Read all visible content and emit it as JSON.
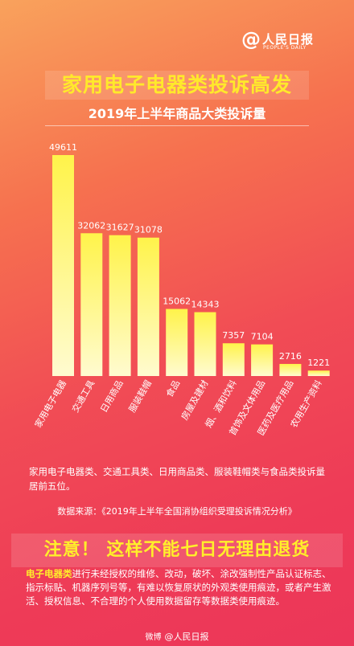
{
  "logo": {
    "at": "@",
    "name": "人民日报",
    "sub": "PEOPLE'S DAILY"
  },
  "headline": "家用电子电器类投诉高发",
  "chart_data": {
    "type": "bar",
    "title": "2019年上半年商品大类投诉量",
    "categories": [
      "家用电子电器",
      "交通工具",
      "日用商品",
      "服装鞋帽",
      "食品",
      "房屋及建材",
      "烟、酒和饮料",
      "首饰及文体用品",
      "医药及医疗用品",
      "农用生产资料"
    ],
    "values": [
      49611,
      32062,
      31627,
      31078,
      15062,
      14343,
      7357,
      7104,
      2716,
      1221
    ],
    "value_labels": [
      "49611",
      "32062",
      "31627",
      "31078",
      "15062",
      "14343",
      "7357",
      "7104",
      "2716",
      "1221"
    ],
    "ylim": [
      0,
      49611
    ],
    "grid": false,
    "colors": {
      "bar_top": "#fff34a",
      "bar_bottom": "#fffbd0"
    }
  },
  "note": "家用电子电器类、交通工具类、日用商品类、服装鞋帽类与食品类投诉量居前五位。",
  "source": "数据来源：《2019年上半年全国消协组织受理投诉情况分析》",
  "notice": "注意！ 这样不能七日无理由退货",
  "detail": {
    "highlight": "电子电器类",
    "text": "进行未经授权的维修、改动，破坏、涂改强制性产品认证标志、指示标贴、机器序列号等，有难以恢复原状的外观类使用痕迹，或者产生激活、授权信息、不合理的个人使用数据留存等数据类使用痕迹。"
  },
  "watermark": {
    "platform": "微博",
    "account": "@人民日报"
  }
}
